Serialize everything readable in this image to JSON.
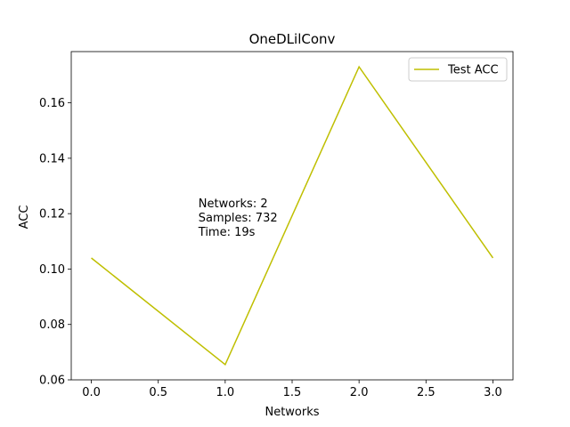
{
  "chart_data": {
    "type": "line",
    "title": "OneDLilConv",
    "xlabel": "Networks",
    "ylabel": "ACC",
    "x": [
      0,
      1,
      2,
      3
    ],
    "series": [
      {
        "name": "Test ACC",
        "color": "#bfbf00",
        "values": [
          0.104,
          0.0655,
          0.173,
          0.104
        ]
      }
    ],
    "xlim": [
      -0.15,
      3.15
    ],
    "ylim": [
      0.06,
      0.1785
    ],
    "xticks": [
      0.0,
      0.5,
      1.0,
      1.5,
      2.0,
      2.5,
      3.0
    ],
    "xtick_labels": [
      "0.0",
      "0.5",
      "1.0",
      "1.5",
      "2.0",
      "2.5",
      "3.0"
    ],
    "yticks": [
      0.06,
      0.08,
      0.1,
      0.12,
      0.14,
      0.16
    ],
    "ytick_labels": [
      "0.06",
      "0.08",
      "0.10",
      "0.12",
      "0.14",
      "0.16"
    ],
    "grid": false,
    "legend_position": "top-right",
    "annotation": {
      "lines": [
        "Networks: 2",
        "Samples: 732",
        "Time: 19s"
      ],
      "x": 0.8,
      "y": 0.1165
    }
  }
}
